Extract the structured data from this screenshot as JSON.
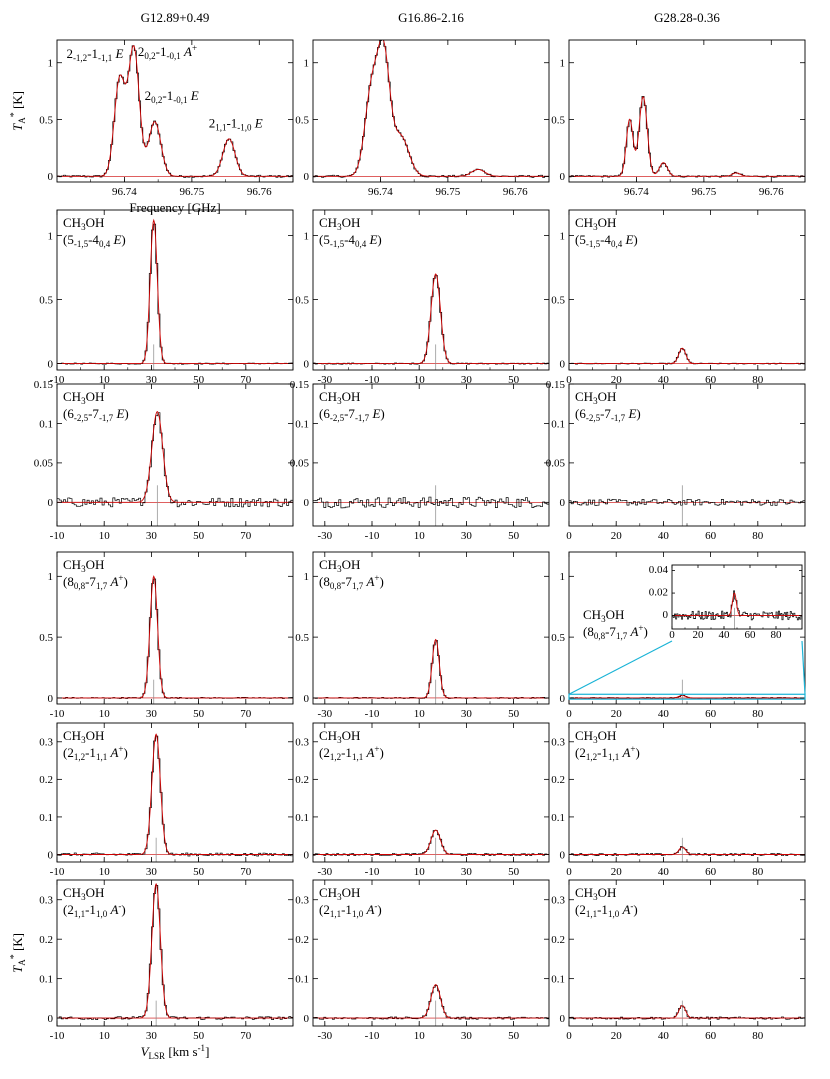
{
  "figure": {
    "columns": [
      "G12.89+0.49",
      "G16.86-2.16",
      "G28.28-0.36"
    ],
    "ylabel_main": "T_A^* [K]",
    "ylabel_bottom": "T_A^* [K]",
    "xlabel_top": "Frequency [GHz]",
    "xlabel_bottom": "V_LSR [km s^-1]"
  },
  "chart_data": [
    {
      "id": "freq-G12.89",
      "row": 0,
      "col": 0,
      "type": "line",
      "xlim": [
        96.73,
        96.765
      ],
      "ylim": [
        -0.05,
        1.2
      ],
      "xticks": [
        96.74,
        96.75,
        96.76
      ],
      "xtick_labels": [
        "96.74",
        "96.75",
        "96.76"
      ],
      "yticks": [
        0,
        0.5,
        1
      ],
      "ytick_labels": [
        "0",
        "0.5",
        "1"
      ],
      "peaks": [
        {
          "x": 96.7393,
          "h": 0.85,
          "w": 0.0008
        },
        {
          "x": 96.7414,
          "h": 1.12,
          "w": 0.0008
        },
        {
          "x": 96.7445,
          "h": 0.48,
          "w": 0.0009
        },
        {
          "x": 96.7555,
          "h": 0.33,
          "w": 0.0009
        }
      ],
      "baseline_noise": 0.01,
      "line_labels": [
        {
          "pre": "2",
          "sub1": "-1,2",
          "mid": "-1",
          "sub2": "-1,1",
          "sym": "E",
          "sup": "",
          "x": 96.7314,
          "y": 1.04
        },
        {
          "pre": "2",
          "sub1": "0,2",
          "mid": "-1",
          "sub2": "-0,1",
          "sym": "A",
          "sup": "+",
          "x": 96.742,
          "y": 1.06
        },
        {
          "pre": "2",
          "sub1": "0,2",
          "mid": "-1",
          "sub2": "-0,1",
          "sym": "E",
          "sup": "",
          "x": 96.743,
          "y": 0.67
        },
        {
          "pre": "2",
          "sub1": "1,1",
          "mid": "-1",
          "sub2": "-1,0",
          "sym": "E",
          "sup": "",
          "x": 96.7525,
          "y": 0.43
        }
      ]
    },
    {
      "id": "freq-G16.86",
      "row": 0,
      "col": 1,
      "type": "line",
      "xlim": [
        96.73,
        96.765
      ],
      "ylim": [
        -0.05,
        1.2
      ],
      "xticks": [
        96.74,
        96.75,
        96.76
      ],
      "xtick_labels": [
        "96.74",
        "96.75",
        "96.76"
      ],
      "yticks": [
        0,
        0.5,
        1
      ],
      "ytick_labels": [
        "0",
        "0.5",
        "1"
      ],
      "peaks": [
        {
          "x": 96.7387,
          "h": 0.75,
          "w": 0.001
        },
        {
          "x": 96.7405,
          "h": 1.0,
          "w": 0.0009
        },
        {
          "x": 96.743,
          "h": 0.35,
          "w": 0.0012
        },
        {
          "x": 96.7545,
          "h": 0.06,
          "w": 0.001
        }
      ],
      "baseline_noise": 0.01
    },
    {
      "id": "freq-G28.28",
      "row": 0,
      "col": 2,
      "type": "line",
      "xlim": [
        96.73,
        96.765
      ],
      "ylim": [
        -0.05,
        1.2
      ],
      "xticks": [
        96.74,
        96.75,
        96.76
      ],
      "xtick_labels": [
        "96.74",
        "96.75",
        "96.76"
      ],
      "yticks": [
        0,
        0.5,
        1
      ],
      "ytick_labels": [
        "0",
        "0.5",
        "1"
      ],
      "peaks": [
        {
          "x": 96.739,
          "h": 0.5,
          "w": 0.0005
        },
        {
          "x": 96.741,
          "h": 0.7,
          "w": 0.0006
        },
        {
          "x": 96.744,
          "h": 0.12,
          "w": 0.0006
        },
        {
          "x": 96.7548,
          "h": 0.03,
          "w": 0.0006
        }
      ],
      "baseline_noise": 0.008
    },
    {
      "id": "r1c0",
      "row": 1,
      "col": 0,
      "type": "line",
      "xlim": [
        -10,
        90
      ],
      "ylim": [
        -0.05,
        1.2
      ],
      "xticks": [
        -10,
        10,
        30,
        50,
        70
      ],
      "xtick_labels": [
        "-10",
        "10",
        "30",
        "50",
        "70"
      ],
      "yticks": [
        0,
        0.5,
        1
      ],
      "ytick_labels": [
        "0",
        "0.5",
        "1"
      ],
      "peaks": [
        {
          "x": 31,
          "h": 1.12,
          "w": 1.5
        }
      ],
      "baseline_noise": 0.005,
      "vline": 31,
      "molecule": "CH3OH",
      "transition": {
        "pre": "5",
        "s1": "-1,5",
        "mid": "-4",
        "s2": "0,4",
        "sym": "E",
        "sup": ""
      }
    },
    {
      "id": "r1c1",
      "row": 1,
      "col": 1,
      "type": "line",
      "xlim": [
        -35,
        65
      ],
      "ylim": [
        -0.05,
        1.2
      ],
      "xticks": [
        -30,
        -10,
        10,
        30,
        50
      ],
      "xtick_labels": [
        "-30",
        "-10",
        "10",
        "30",
        "50"
      ],
      "yticks": [
        0,
        0.5,
        1
      ],
      "ytick_labels": [
        "0",
        "0.5",
        "1"
      ],
      "peaks": [
        {
          "x": 17,
          "h": 0.7,
          "w": 2.0
        }
      ],
      "baseline_noise": 0.005,
      "vline": 17,
      "molecule": "CH3OH",
      "transition": {
        "pre": "5",
        "s1": "-1,5",
        "mid": "-4",
        "s2": "0,4",
        "sym": "E",
        "sup": ""
      }
    },
    {
      "id": "r1c2",
      "row": 1,
      "col": 2,
      "type": "line",
      "xlim": [
        0,
        100
      ],
      "ylim": [
        -0.05,
        1.2
      ],
      "xticks": [
        0,
        20,
        40,
        60,
        80
      ],
      "xtick_labels": [
        "0",
        "20",
        "40",
        "60",
        "80"
      ],
      "yticks": [
        0,
        0.5,
        1
      ],
      "ytick_labels": [
        "0",
        "0.5",
        "1"
      ],
      "peaks": [
        {
          "x": 48,
          "h": 0.12,
          "w": 1.5
        }
      ],
      "baseline_noise": 0.004,
      "molecule": "CH3OH",
      "transition": {
        "pre": "5",
        "s1": "-1,5",
        "mid": "-4",
        "s2": "0,4",
        "sym": "E",
        "sup": ""
      }
    },
    {
      "id": "r2c0",
      "row": 2,
      "col": 0,
      "type": "line",
      "xlim": [
        -10,
        90
      ],
      "ylim": [
        -0.03,
        0.15
      ],
      "xticks": [
        -10,
        10,
        30,
        50,
        70
      ],
      "xtick_labels": [
        "-10",
        "10",
        "30",
        "50",
        "70"
      ],
      "yticks": [
        0,
        0.05,
        0.1,
        0.15
      ],
      "ytick_labels": [
        "0",
        "0.05",
        "0.1",
        "0.15"
      ],
      "peaks": [
        {
          "x": 32.5,
          "h": 0.115,
          "w": 2.3
        }
      ],
      "baseline_noise": 0.006,
      "vline": 32.5,
      "molecule": "CH3OH",
      "transition": {
        "pre": "6",
        "s1": "-2,5",
        "mid": "-7",
        "s2": "-1,7",
        "sym": "E",
        "sup": ""
      }
    },
    {
      "id": "r2c1",
      "row": 2,
      "col": 1,
      "type": "line",
      "xlim": [
        -35,
        65
      ],
      "ylim": [
        -0.03,
        0.15
      ],
      "xticks": [
        -30,
        -10,
        10,
        30,
        50
      ],
      "xtick_labels": [
        "-30",
        "-10",
        "10",
        "30",
        "50"
      ],
      "yticks": [
        0,
        0.05,
        0.1,
        0.15
      ],
      "ytick_labels": [
        "0",
        "0.05",
        "0.1",
        "0.15"
      ],
      "peaks": [],
      "baseline_noise": 0.007,
      "vline": 17,
      "no_fit": true,
      "molecule": "CH3OH",
      "transition": {
        "pre": "6",
        "s1": "-2,5",
        "mid": "-7",
        "s2": "-1,7",
        "sym": "E",
        "sup": ""
      }
    },
    {
      "id": "r2c2",
      "row": 2,
      "col": 2,
      "type": "line",
      "xlim": [
        0,
        100
      ],
      "ylim": [
        -0.03,
        0.15
      ],
      "xticks": [
        0,
        20,
        40,
        60,
        80
      ],
      "xtick_labels": [
        "0",
        "20",
        "40",
        "60",
        "80"
      ],
      "yticks": [
        0,
        0.05,
        0.1,
        0.15
      ],
      "ytick_labels": [
        "0",
        "0.05",
        "0.1",
        "0.15"
      ],
      "peaks": [],
      "baseline_noise": 0.004,
      "vline": 48,
      "no_fit": true,
      "molecule": "CH3OH",
      "transition": {
        "pre": "6",
        "s1": "-2,5",
        "mid": "-7",
        "s2": "-1,7",
        "sym": "E",
        "sup": ""
      }
    },
    {
      "id": "r3c0",
      "row": 3,
      "col": 0,
      "type": "line",
      "xlim": [
        -10,
        90
      ],
      "ylim": [
        -0.05,
        1.2
      ],
      "xticks": [
        -10,
        10,
        30,
        50,
        70
      ],
      "xtick_labels": [
        "-10",
        "10",
        "30",
        "50",
        "70"
      ],
      "yticks": [
        0,
        0.5,
        1
      ],
      "ytick_labels": [
        "0",
        "0.5",
        "1"
      ],
      "peaks": [
        {
          "x": 31,
          "h": 1.0,
          "w": 1.6
        }
      ],
      "baseline_noise": 0.005,
      "vline": 31,
      "molecule": "CH3OH",
      "transition": {
        "pre": "8",
        "s1": "0,8",
        "mid": "-7",
        "s2": "1,7",
        "sym": "A",
        "sup": "+"
      }
    },
    {
      "id": "r3c1",
      "row": 3,
      "col": 1,
      "type": "line",
      "xlim": [
        -35,
        65
      ],
      "ylim": [
        -0.05,
        1.2
      ],
      "xticks": [
        -30,
        -10,
        10,
        30,
        50
      ],
      "xtick_labels": [
        "-30",
        "-10",
        "10",
        "30",
        "50"
      ],
      "yticks": [
        0,
        0.5,
        1
      ],
      "ytick_labels": [
        "0",
        "0.5",
        "1"
      ],
      "peaks": [
        {
          "x": 17,
          "h": 0.48,
          "w": 1.5
        }
      ],
      "baseline_noise": 0.005,
      "vline": 17,
      "molecule": "CH3OH",
      "transition": {
        "pre": "8",
        "s1": "0,8",
        "mid": "-7",
        "s2": "1,7",
        "sym": "A",
        "sup": "+"
      }
    },
    {
      "id": "r3c2",
      "row": 3,
      "col": 2,
      "type": "line",
      "xlim": [
        0,
        100
      ],
      "ylim": [
        -0.05,
        1.2
      ],
      "xticks": [
        0,
        20,
        40,
        60,
        80
      ],
      "xtick_labels": [
        "0",
        "20",
        "40",
        "60",
        "80"
      ],
      "yticks": [
        0,
        0.5,
        1
      ],
      "ytick_labels": [
        "0",
        "0.5",
        "1"
      ],
      "peaks": [
        {
          "x": 48,
          "h": 0.02,
          "w": 1.5
        }
      ],
      "baseline_noise": 0.004,
      "vline": 48,
      "molecule": "CH3OH",
      "transition": {
        "pre": "8",
        "s1": "0,8",
        "mid": "-7",
        "s2": "1,7",
        "sym": "A",
        "sup": "+"
      },
      "inset": {
        "xlim": [
          0,
          100
        ],
        "ylim": [
          -0.012,
          0.045
        ],
        "xticks": [
          0,
          20,
          40,
          60,
          80
        ],
        "xtick_labels": [
          "0",
          "20",
          "40",
          "60",
          "80"
        ],
        "yticks": [
          0,
          0.02,
          0.04
        ],
        "ytick_labels": [
          "0",
          "0.02",
          "0.04"
        ],
        "peaks": [
          {
            "x": 48,
            "h": 0.02,
            "w": 1.5
          }
        ],
        "baseline_noise": 0.004,
        "vline": 48,
        "highlight_ylim": [
          -0.01,
          0.03
        ]
      }
    },
    {
      "id": "r4c0",
      "row": 4,
      "col": 0,
      "type": "line",
      "xlim": [
        -10,
        90
      ],
      "ylim": [
        -0.02,
        0.35
      ],
      "xticks": [
        -10,
        10,
        30,
        50,
        70
      ],
      "xtick_labels": [
        "-10",
        "10",
        "30",
        "50",
        "70"
      ],
      "yticks": [
        0,
        0.1,
        0.2,
        0.3
      ],
      "ytick_labels": [
        "0",
        "0.1",
        "0.2",
        "0.3"
      ],
      "peaks": [
        {
          "x": 32,
          "h": 0.32,
          "w": 1.8
        }
      ],
      "baseline_noise": 0.004,
      "vline": 32,
      "molecule": "CH3OH",
      "transition": {
        "pre": "2",
        "s1": "1,2",
        "mid": "-1",
        "s2": "1,1",
        "sym": "A",
        "sup": "+"
      }
    },
    {
      "id": "r4c1",
      "row": 4,
      "col": 1,
      "type": "line",
      "xlim": [
        -35,
        65
      ],
      "ylim": [
        -0.02,
        0.35
      ],
      "xticks": [
        -30,
        -10,
        10,
        30,
        50
      ],
      "xtick_labels": [
        "-30",
        "-10",
        "10",
        "30",
        "50"
      ],
      "yticks": [
        0,
        0.1,
        0.2,
        0.3
      ],
      "ytick_labels": [
        "0",
        "0.1",
        "0.2",
        "0.3"
      ],
      "peaks": [
        {
          "x": 17,
          "h": 0.065,
          "w": 2.0
        }
      ],
      "baseline_noise": 0.003,
      "vline": 17,
      "molecule": "CH3OH",
      "transition": {
        "pre": "2",
        "s1": "1,2",
        "mid": "-1",
        "s2": "1,1",
        "sym": "A",
        "sup": "+"
      }
    },
    {
      "id": "r4c2",
      "row": 4,
      "col": 2,
      "type": "line",
      "xlim": [
        0,
        100
      ],
      "ylim": [
        -0.02,
        0.35
      ],
      "xticks": [
        0,
        20,
        40,
        60,
        80
      ],
      "xtick_labels": [
        "0",
        "20",
        "40",
        "60",
        "80"
      ],
      "yticks": [
        0,
        0.1,
        0.2,
        0.3
      ],
      "ytick_labels": [
        "0",
        "0.1",
        "0.2",
        "0.3"
      ],
      "peaks": [
        {
          "x": 48,
          "h": 0.02,
          "w": 1.4
        }
      ],
      "baseline_noise": 0.003,
      "vline": 48,
      "molecule": "CH3OH",
      "transition": {
        "pre": "2",
        "s1": "1,2",
        "mid": "-1",
        "s2": "1,1",
        "sym": "A",
        "sup": "+"
      }
    },
    {
      "id": "r5c0",
      "row": 5,
      "col": 0,
      "type": "line",
      "xlim": [
        -10,
        90
      ],
      "ylim": [
        -0.02,
        0.35
      ],
      "xticks": [
        -10,
        10,
        30,
        50,
        70
      ],
      "xtick_labels": [
        "-10",
        "10",
        "30",
        "50",
        "70"
      ],
      "yticks": [
        0,
        0.1,
        0.2,
        0.3
      ],
      "ytick_labels": [
        "0",
        "0.1",
        "0.2",
        "0.3"
      ],
      "peaks": [
        {
          "x": 32,
          "h": 0.34,
          "w": 1.8
        }
      ],
      "baseline_noise": 0.004,
      "vline": 32,
      "molecule": "CH3OH",
      "transition": {
        "pre": "2",
        "s1": "1,1",
        "mid": "-1",
        "s2": "1,0",
        "sym": "A",
        "sup": "-"
      }
    },
    {
      "id": "r5c1",
      "row": 5,
      "col": 1,
      "type": "line",
      "xlim": [
        -35,
        65
      ],
      "ylim": [
        -0.02,
        0.35
      ],
      "xticks": [
        -30,
        -10,
        10,
        30,
        50
      ],
      "xtick_labels": [
        "-30",
        "-10",
        "10",
        "30",
        "50"
      ],
      "yticks": [
        0,
        0.1,
        0.2,
        0.3
      ],
      "ytick_labels": [
        "0",
        "0.1",
        "0.2",
        "0.3"
      ],
      "peaks": [
        {
          "x": 17,
          "h": 0.085,
          "w": 2.0
        }
      ],
      "baseline_noise": 0.003,
      "vline": 17,
      "molecule": "CH3OH",
      "transition": {
        "pre": "2",
        "s1": "1,1",
        "mid": "-1",
        "s2": "1,0",
        "sym": "A",
        "sup": "-"
      }
    },
    {
      "id": "r5c2",
      "row": 5,
      "col": 2,
      "type": "line",
      "xlim": [
        0,
        100
      ],
      "ylim": [
        -0.02,
        0.35
      ],
      "xticks": [
        0,
        20,
        40,
        60,
        80
      ],
      "xtick_labels": [
        "0",
        "20",
        "40",
        "60",
        "80"
      ],
      "yticks": [
        0,
        0.1,
        0.2,
        0.3
      ],
      "ytick_labels": [
        "0",
        "0.1",
        "0.2",
        "0.3"
      ],
      "peaks": [
        {
          "x": 48,
          "h": 0.032,
          "w": 1.4
        }
      ],
      "baseline_noise": 0.003,
      "vline": 48,
      "molecule": "CH3OH",
      "transition": {
        "pre": "2",
        "s1": "1,1",
        "mid": "-1",
        "s2": "1,0",
        "sym": "A",
        "sup": "-"
      }
    }
  ],
  "colors": {
    "observed": "#000000",
    "fit": "#cc0000",
    "marker": "#888888",
    "inset_link": "#19b3d6"
  }
}
